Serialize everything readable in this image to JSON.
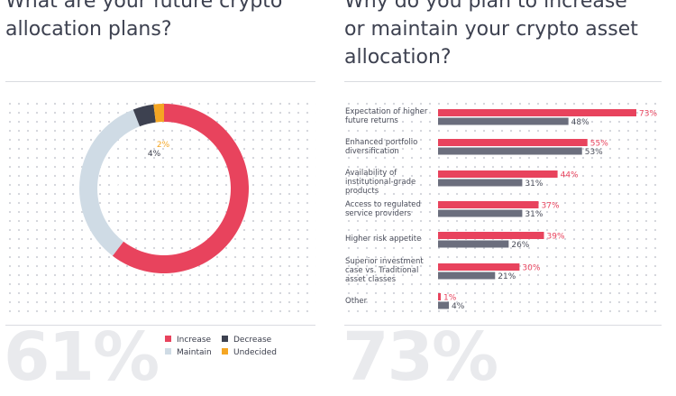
{
  "left": {
    "title": "What are your future crypto\nallocation plans?",
    "big_number": "61%"
  },
  "right": {
    "title": "Why do you plan to increase\nor maintain your crypto asset\nallocation?",
    "big_number": "73%"
  },
  "legend": [
    {
      "label": "Increase",
      "color": "#e8435d"
    },
    {
      "label": "Decrease",
      "color": "#3d4150"
    },
    {
      "label": "Maintain",
      "color": "#cfdbe5"
    },
    {
      "label": "Undecided",
      "color": "#f5a623"
    }
  ],
  "chart_data": [
    {
      "type": "pie",
      "title": "What are your future crypto allocation plans?",
      "donut": true,
      "slices": [
        {
          "label": "Increase",
          "value": 61,
          "text": "61%",
          "color": "#e8435d"
        },
        {
          "label": "Maintain",
          "value": 34,
          "text": "34%",
          "color": "#cfdbe5"
        },
        {
          "label": "Decrease",
          "value": 4,
          "text": "4%",
          "color": "#3d4150"
        },
        {
          "label": "Undecided",
          "value": 2,
          "text": "2%",
          "color": "#f5a623"
        }
      ],
      "legend_placement": "bottom"
    },
    {
      "type": "bar",
      "orientation": "horizontal",
      "title": "Why do you plan to increase or maintain your crypto asset allocation?",
      "categories": [
        "Expectation of higher\nfuture returns",
        "Enhanced portfolio\ndiversification",
        "Availability of\ninstitutional-grade\nproducts",
        "Access to regulated\nservice providers",
        "Higher risk appetite",
        "Superior investment\ncase vs. Traditional\nasset classes",
        "Other"
      ],
      "series": [
        {
          "name": "Increase",
          "color": "#e8435d",
          "values": [
            73,
            55,
            44,
            37,
            39,
            30,
            1
          ],
          "labels": [
            "73%",
            "55%",
            "44%",
            "37%",
            "39%",
            "30%",
            "1%"
          ]
        },
        {
          "name": "Maintain",
          "color": "#6b6e7d",
          "values": [
            48,
            53,
            31,
            31,
            26,
            21,
            4
          ],
          "labels": [
            "48%",
            "53%",
            "31%",
            "31%",
            "26%",
            "21%",
            "4%"
          ]
        }
      ],
      "xlim": [
        0,
        100
      ]
    }
  ]
}
